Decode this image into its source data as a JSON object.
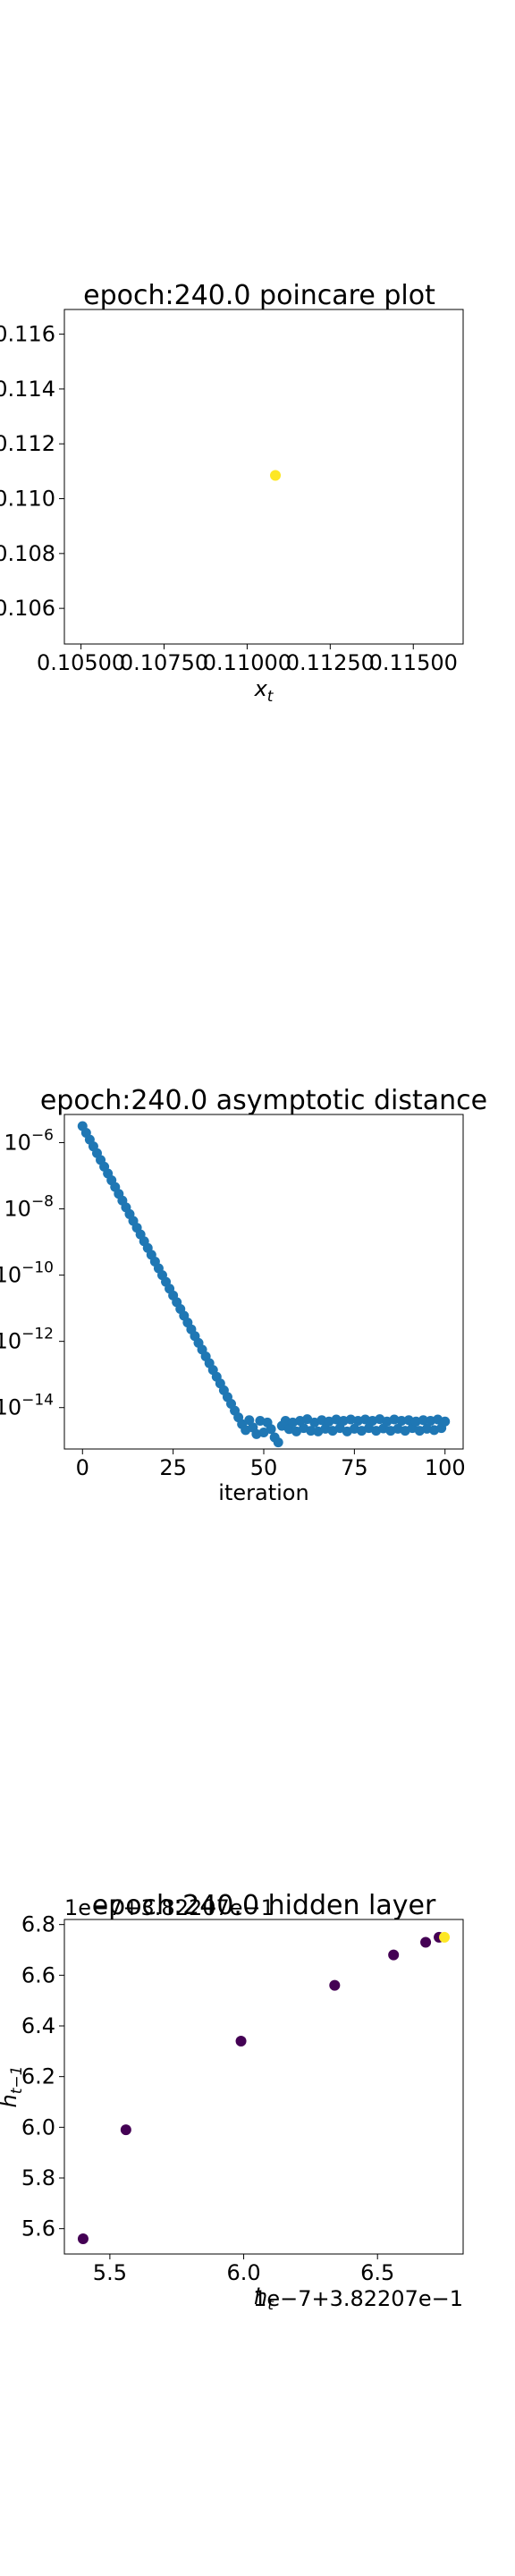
{
  "chart_data": [
    {
      "type": "scatter",
      "title": "epoch:240.0 poincare plot",
      "xlabel": "x_t",
      "ylabel": "",
      "x_ticks": [
        "0.10500",
        "0.10750",
        "0.11000",
        "0.11250",
        "0.11500"
      ],
      "y_ticks": [
        "0.106",
        "0.108",
        "0.110",
        "0.112",
        "0.114",
        "0.116"
      ],
      "xlim": [
        0.1045,
        0.1165
      ],
      "ylim": [
        0.1047,
        0.1169
      ],
      "points": [
        {
          "x": 0.11085,
          "y": 0.11085
        }
      ],
      "color": "#fde725"
    },
    {
      "type": "scatter",
      "title": "epoch:240.0 asymptotic distance",
      "xlabel": "iteration",
      "ylabel": "",
      "y_scale": "log",
      "x_ticks": [
        "0",
        "25",
        "50",
        "75",
        "100"
      ],
      "y_ticks": [
        "10^-6",
        "10^-8",
        "10^-10",
        "10^-12",
        "10^-14"
      ],
      "xlim": [
        -5,
        105
      ],
      "ylim_exp": [
        -15.25,
        -5.15
      ],
      "decay": {
        "x_start": 0,
        "x_end": 44,
        "log10_start": -5.5,
        "log10_end": -14.5
      },
      "floor_log10": [
        -14.68,
        -14.38,
        -14.6,
        -14.8,
        -14.4,
        -14.75,
        -14.45,
        -14.65,
        -14.9,
        -15.05,
        -14.55,
        -14.4,
        -14.65,
        -14.45,
        -14.72,
        -14.4,
        -14.62,
        -14.35,
        -14.7,
        -14.45,
        -14.72,
        -14.38,
        -14.64,
        -14.42,
        -14.7,
        -14.36,
        -14.62,
        -14.4,
        -14.72,
        -14.36,
        -14.64,
        -14.4,
        -14.7,
        -14.36,
        -14.62,
        -14.4,
        -14.7,
        -14.35,
        -14.63,
        -14.42,
        -14.7,
        -14.36,
        -14.64,
        -14.4,
        -14.7,
        -14.38,
        -14.62,
        -14.42,
        -14.7,
        -14.38,
        -14.64,
        -14.4,
        -14.68,
        -14.36,
        -14.62,
        -14.42
      ],
      "floor_start_x": 45,
      "color": "#1f77b4"
    },
    {
      "type": "scatter",
      "title": "epoch:240.0 hidden layer",
      "xlabel": "h_t",
      "ylabel": "h_{t-1}",
      "x_offset_text": "1e−7+3.82207e−1",
      "y_offset_text": "1e−7+3.82207e−1",
      "x_ticks": [
        "5.5",
        "6.0",
        "6.5"
      ],
      "y_ticks": [
        "5.6",
        "5.8",
        "6.0",
        "6.2",
        "6.4",
        "6.6",
        "6.8"
      ],
      "xlim": [
        5.33,
        6.82
      ],
      "ylim": [
        5.5,
        6.82
      ],
      "points": [
        {
          "x": 5.4,
          "y": 5.56
        },
        {
          "x": 5.56,
          "y": 5.99
        },
        {
          "x": 5.99,
          "y": 6.34
        },
        {
          "x": 6.34,
          "y": 6.56
        },
        {
          "x": 6.56,
          "y": 6.68
        },
        {
          "x": 6.68,
          "y": 6.73
        },
        {
          "x": 6.73,
          "y": 6.75
        },
        {
          "x": 6.75,
          "y": 6.75
        }
      ],
      "colors": [
        "#440154",
        "#440154",
        "#440154",
        "#440154",
        "#440154",
        "#440154",
        "#440154",
        "#fde725"
      ]
    }
  ]
}
